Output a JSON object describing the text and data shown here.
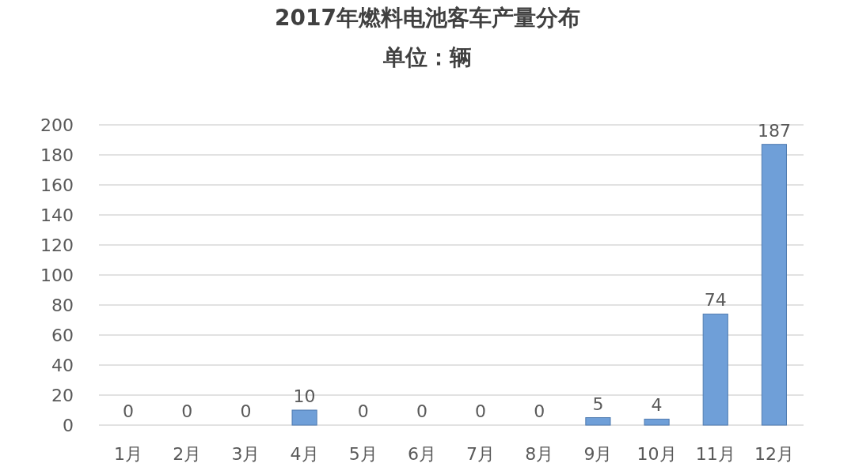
{
  "chart_data": {
    "type": "bar",
    "title": "2017年燃料电池客车产量分布",
    "subtitle": "单位：辆",
    "categories": [
      "1月",
      "2月",
      "3月",
      "4月",
      "5月",
      "6月",
      "7月",
      "8月",
      "9月",
      "10月",
      "11月",
      "12月"
    ],
    "values": [
      0,
      0,
      0,
      10,
      0,
      0,
      0,
      0,
      5,
      4,
      74,
      187
    ],
    "color": "#6f9fd8",
    "ylim": [
      0,
      200
    ],
    "yticks": [
      0,
      20,
      40,
      60,
      80,
      100,
      120,
      140,
      160,
      180,
      200
    ],
    "grid": "y",
    "data_labels": true
  }
}
